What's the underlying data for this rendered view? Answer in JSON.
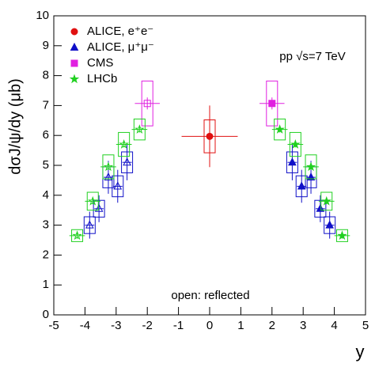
{
  "chart_data": {
    "type": "scatter",
    "y_label": "dσJ/ψ/dy (μb)",
    "x_label": "y",
    "annotation": "pp √s=7 TeV",
    "note": "open: reflected",
    "xlim": [
      -5,
      5
    ],
    "ylim": [
      0,
      10
    ],
    "xticks": [
      -5,
      -4,
      -3,
      -2,
      -1,
      0,
      1,
      2,
      3,
      4,
      5
    ],
    "yticks": [
      0,
      1,
      2,
      3,
      4,
      5,
      6,
      7,
      8,
      9,
      10
    ],
    "legend": "upper left",
    "series": [
      {
        "name": "ALICE, e⁺e⁻",
        "color": "#e01010",
        "marker": "circle",
        "reflect": false,
        "x": [
          0
        ],
        "values": [
          5.97
        ],
        "errors": [
          1.03
        ],
        "sys": [
          0.55
        ],
        "xerr": [
          0.9
        ]
      },
      {
        "name": "ALICE, μ⁺μ⁻",
        "color": "#1010c8",
        "marker": "triangle",
        "reflect": true,
        "x": [
          2.65,
          2.95,
          3.25,
          3.55,
          3.85
        ],
        "values": [
          5.1,
          4.3,
          4.6,
          3.55,
          3.0
        ],
        "errors": [
          0.6,
          0.55,
          0.55,
          0.45,
          0.45
        ],
        "sys": [
          0.35,
          0.35,
          0.35,
          0.28,
          0.28
        ],
        "xerr": [
          0.15,
          0.15,
          0.15,
          0.15,
          0.15
        ]
      },
      {
        "name": "CMS",
        "color": "#e020e0",
        "marker": "square",
        "reflect": true,
        "x": [
          2.0
        ],
        "values": [
          7.07
        ],
        "errors": [
          0.2
        ],
        "sys": [
          0.75
        ],
        "xerr": [
          0.4
        ]
      },
      {
        "name": "LHCb",
        "color": "#20d020",
        "marker": "star",
        "reflect": true,
        "x": [
          2.25,
          2.75,
          3.25,
          3.75,
          4.25
        ],
        "values": [
          6.2,
          5.7,
          4.95,
          3.8,
          2.65
        ],
        "errors": [
          0.1,
          0.1,
          0.1,
          0.1,
          0.1
        ],
        "sys": [
          0.35,
          0.4,
          0.4,
          0.3,
          0.2
        ],
        "xerr": [
          0.25,
          0.25,
          0.25,
          0.25,
          0.25
        ]
      }
    ]
  }
}
